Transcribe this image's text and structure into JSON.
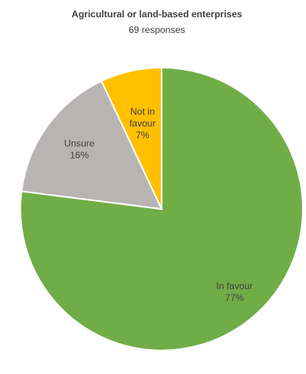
{
  "chart_data": {
    "type": "pie",
    "title": "Agricultural or land-based enterprises",
    "subtitle": "69 responses",
    "slices": [
      {
        "label": "In favour",
        "value": 77,
        "value_label": "77%",
        "color": "#70ad47"
      },
      {
        "label": "Unsure",
        "value": 16,
        "value_label": "16%",
        "color": "#b9b4b4"
      },
      {
        "label": "Not in favour",
        "value": 7,
        "value_label": "7%",
        "color": "#ffc000"
      }
    ]
  }
}
